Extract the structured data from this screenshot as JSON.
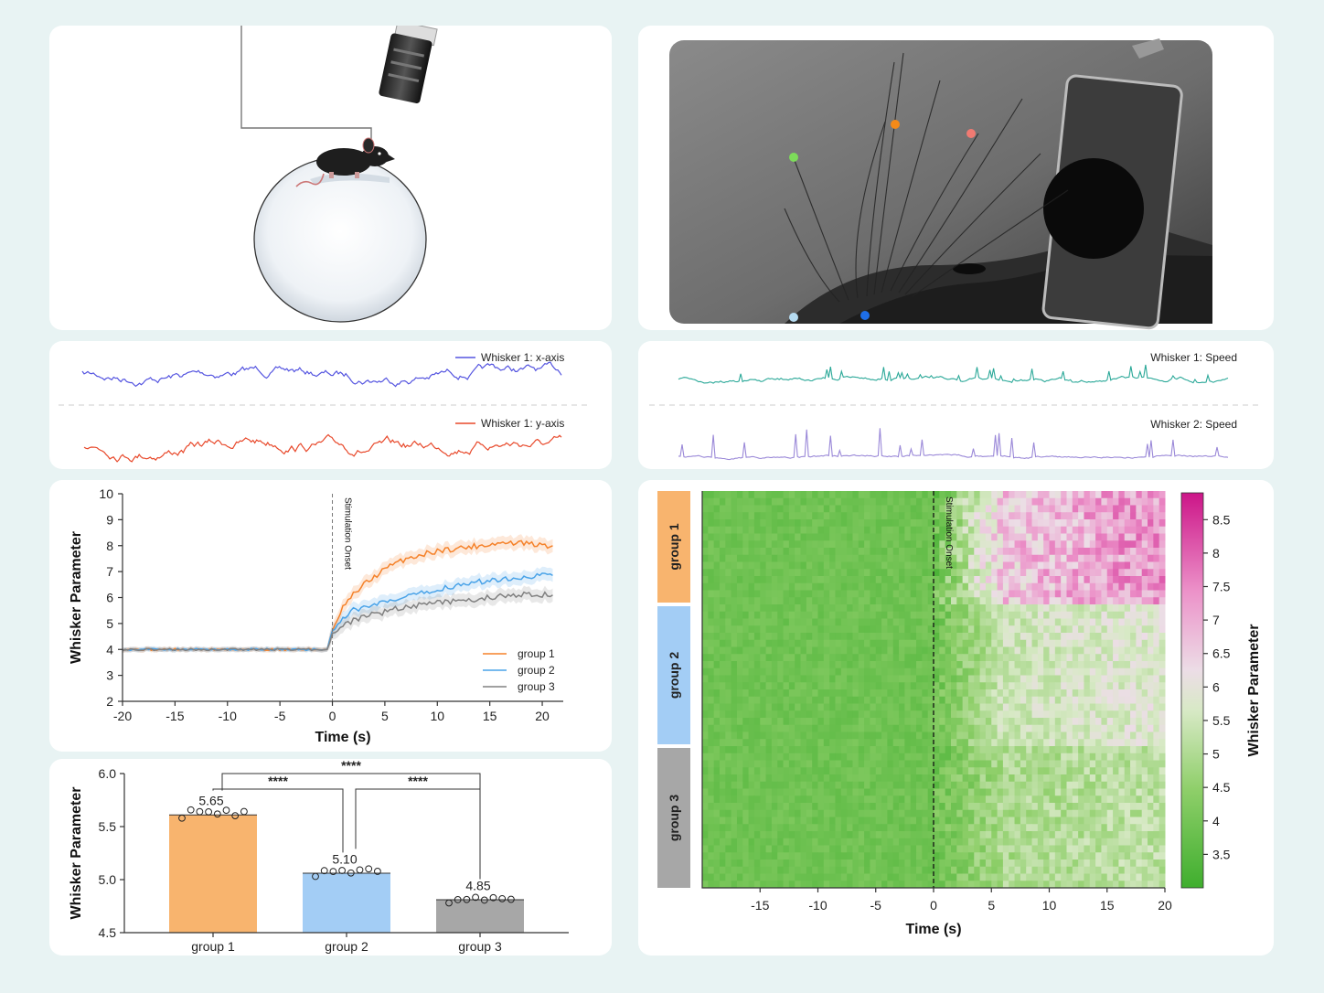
{
  "colors": {
    "group1": "#f5822a",
    "group2": "#4aa3e8",
    "group3": "#808080",
    "whisker_x": "#5555e0",
    "whisker_y": "#e8482a",
    "speed1": "#2aa898",
    "speed2": "#9a88d8"
  },
  "traces": {
    "x_label": "Whisker 1: x-axis",
    "y_label": "Whisker 1: y-axis",
    "speed1_label": "Whisker 1: Speed",
    "speed2_label": "Whisker 2: Speed"
  },
  "chart_data": [
    {
      "type": "line",
      "xlabel": "Time (s)",
      "ylabel": "Whisker Parameter",
      "xlim": [
        -20,
        22
      ],
      "ylim": [
        2,
        10
      ],
      "xticks": [
        -20,
        -15,
        -10,
        -5,
        0,
        5,
        10,
        15,
        20
      ],
      "yticks": [
        2,
        3,
        4,
        5,
        6,
        7,
        8,
        9,
        10
      ],
      "annotation": "Stimulation Onset",
      "legend_position": "bottom-right",
      "series": [
        {
          "name": "group 1",
          "x": [
            -20,
            -10,
            -0.5,
            0,
            1,
            2,
            3,
            4,
            5,
            6,
            7,
            8,
            9,
            10,
            12,
            14,
            16,
            18,
            20,
            21
          ],
          "y": [
            4.0,
            4.0,
            4.0,
            4.7,
            5.6,
            6.1,
            6.5,
            6.8,
            7.1,
            7.3,
            7.5,
            7.6,
            7.7,
            7.8,
            7.9,
            8.0,
            8.1,
            8.1,
            8.0,
            8.0
          ]
        },
        {
          "name": "group 2",
          "x": [
            -20,
            -10,
            -0.5,
            0,
            1,
            2,
            3,
            4,
            5,
            6,
            7,
            8,
            9,
            10,
            12,
            14,
            16,
            18,
            20,
            21
          ],
          "y": [
            4.0,
            4.0,
            4.0,
            4.7,
            5.2,
            5.5,
            5.6,
            5.7,
            5.8,
            5.9,
            6.0,
            6.1,
            6.2,
            6.3,
            6.5,
            6.6,
            6.7,
            6.8,
            6.85,
            6.85
          ]
        },
        {
          "name": "group 3",
          "x": [
            -20,
            -10,
            -0.5,
            0,
            1,
            2,
            3,
            4,
            5,
            6,
            7,
            8,
            9,
            10,
            12,
            14,
            16,
            18,
            20,
            21
          ],
          "y": [
            4.0,
            4.0,
            4.0,
            4.6,
            4.9,
            5.1,
            5.25,
            5.35,
            5.45,
            5.55,
            5.65,
            5.7,
            5.75,
            5.8,
            5.85,
            5.95,
            6.05,
            6.1,
            6.1,
            6.1
          ]
        }
      ]
    },
    {
      "type": "bar",
      "ylabel": "Whisker Parameter",
      "categories": [
        "group 1",
        "group 2",
        "group 3"
      ],
      "values": [
        5.65,
        5.1,
        4.85
      ],
      "value_labels": [
        "5.65",
        "5.10",
        "4.85"
      ],
      "ylim": [
        4.5,
        6.0
      ],
      "yticks": [
        "4.5",
        "5.0",
        "5.5",
        "6.0"
      ],
      "significance": [
        {
          "from": 0,
          "to": 1,
          "label": "****"
        },
        {
          "from": 1,
          "to": 2,
          "label": "****"
        },
        {
          "from": 0,
          "to": 2,
          "label": "****"
        }
      ]
    },
    {
      "type": "heatmap",
      "xlabel": "Time (s)",
      "colorbar_label": "Whisker Parameter",
      "xticks": [
        -15,
        -10,
        -5,
        0,
        5,
        10,
        15,
        20
      ],
      "xlim": [
        -20,
        20
      ],
      "colorbar_ticks": [
        "3.5",
        "4",
        "4.5",
        "5",
        "5.5",
        "6",
        "6.5",
        "7",
        "7.5",
        "8",
        "8.5"
      ],
      "colorbar_range": [
        3.0,
        8.9
      ],
      "annotation": "Stimulation Onset",
      "groups": [
        "group 1",
        "group 2",
        "group 3"
      ],
      "group_means_after_onset": [
        7.3,
        5.8,
        5.2
      ],
      "baseline_mean": 3.9
    }
  ]
}
